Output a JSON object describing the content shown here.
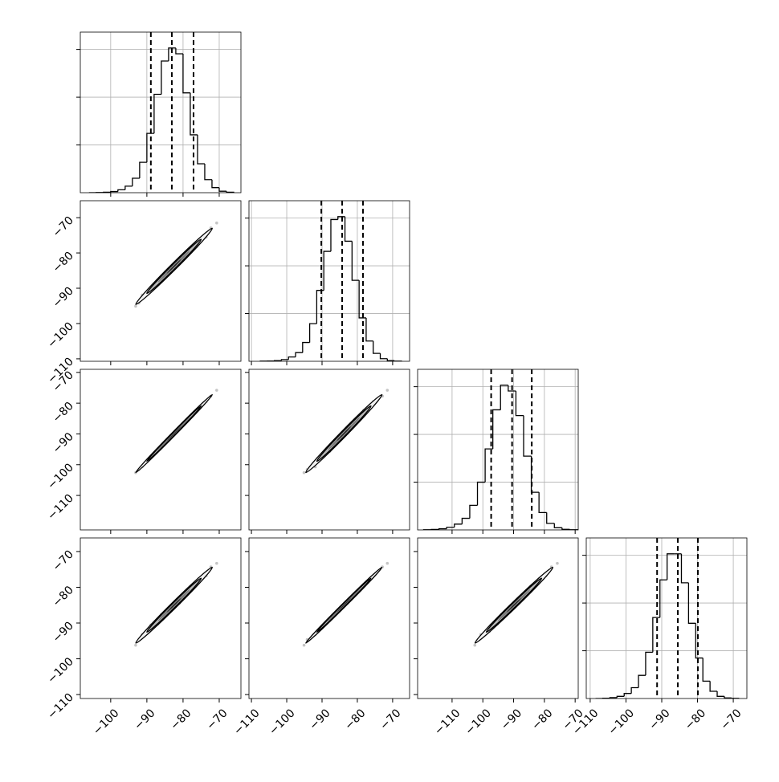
{
  "chart_data": {
    "type": "corner",
    "hist_ylim": [
      0,
      1110
    ],
    "hist_yticks": [
      330,
      660,
      990
    ],
    "hist_grid": true,
    "hist_color": "#000000",
    "point_color": "#555555",
    "contour_color": "#000000",
    "parameters": [
      {
        "xlim": [
          -108.4,
          -64
        ],
        "xticks": [
          {
            "value": -100,
            "label": "−100"
          },
          {
            "value": -90,
            "label": "−90"
          },
          {
            "value": -80,
            "label": "−80"
          },
          {
            "value": -70,
            "label": "−70"
          }
        ],
        "bins": [
          -106,
          -104,
          -102,
          -100,
          -98,
          -96,
          -94,
          -92,
          -90,
          -88,
          -86,
          -84,
          -82,
          -80,
          -78,
          -76,
          -74,
          -72,
          -70,
          -68,
          -66
        ],
        "counts": [
          0,
          1,
          3,
          8,
          20,
          45,
          100,
          210,
          410,
          680,
          910,
          1000,
          960,
          690,
          400,
          200,
          90,
          35,
          10,
          3
        ],
        "quantiles": [
          -88.9,
          -83.1,
          -77.1
        ],
        "samples": [
          -93.1,
          -91.3,
          -89.3,
          -88.9,
          -87.0,
          -87.2,
          -85.7,
          -86.0,
          -84.9,
          -84.9,
          -83.7,
          -83.7,
          -82.6,
          -83.1,
          -82.3,
          -82.4,
          -81.0,
          -81.4,
          -80.5,
          -80.5,
          -79.4,
          -79.3,
          -78.1,
          -77.9,
          -76.2,
          -75.7,
          -73.6,
          -72.3,
          -92.2,
          -70.7
        ]
      },
      {
        "xlim": [
          -110.7,
          -65.2
        ],
        "xticks": [
          {
            "value": -110,
            "label": "−110"
          },
          {
            "value": -100,
            "label": "−100"
          },
          {
            "value": -90,
            "label": "−90"
          },
          {
            "value": -80,
            "label": "−80"
          },
          {
            "value": -70,
            "label": "−70"
          }
        ],
        "bins": [
          -107.5,
          -105.5,
          -103.5,
          -101.5,
          -99.5,
          -97.5,
          -95.5,
          -93.5,
          -91.5,
          -89.5,
          -87.5,
          -85.5,
          -83.5,
          -81.5,
          -79.5,
          -77.5,
          -75.5,
          -73.5,
          -71.5,
          -69.5,
          -67.5
        ],
        "counts": [
          1,
          2,
          5,
          12,
          30,
          60,
          130,
          260,
          490,
          760,
          980,
          1000,
          830,
          560,
          300,
          140,
          55,
          18,
          5,
          1
        ],
        "quantiles": [
          -90.2,
          -84.3,
          -78.4
        ],
        "samples": [
          -95.1,
          -91.9,
          -91.3,
          -89.6,
          -89.0,
          -87.8,
          -87.7,
          -86.5,
          -86.4,
          -85.4,
          -85.6,
          -84.6,
          -84.7,
          -83.8,
          -84.0,
          -82.8,
          -83.1,
          -82.5,
          -82.5,
          -81.3,
          -81.3,
          -79.9,
          -79.9,
          -78.6,
          -78.2,
          -76.5,
          -75.5,
          -72.9,
          -94.2,
          -71.5
        ]
      },
      {
        "xlim": [
          -121.2,
          -69
        ],
        "xticks": [
          {
            "value": -110,
            "label": "−110"
          },
          {
            "value": -100,
            "label": "−100"
          },
          {
            "value": -90,
            "label": "−90"
          },
          {
            "value": -80,
            "label": "−80"
          },
          {
            "value": -70,
            "label": "−70"
          }
        ],
        "bins": [
          -119.25,
          -116.75,
          -114.25,
          -111.75,
          -109.25,
          -106.75,
          -104.25,
          -101.75,
          -99.25,
          -96.75,
          -94.25,
          -91.75,
          -89.25,
          -86.75,
          -84.25,
          -81.75,
          -79.25,
          -76.75,
          -74.25,
          -71.75,
          -69.25
        ],
        "counts": [
          1,
          3,
          8,
          18,
          40,
          80,
          170,
          330,
          560,
          830,
          1000,
          960,
          790,
          510,
          260,
          120,
          45,
          15,
          4,
          1
        ],
        "quantiles": [
          -97.3,
          -90.5,
          -84.1
        ],
        "samples": [
          -102.6,
          -100.7,
          -97.9,
          -97.4,
          -95.3,
          -95.7,
          -93.9,
          -94.0,
          -92.6,
          -92.5,
          -91.3,
          -91.4,
          -90.0,
          -90.6,
          -89.6,
          -89.8,
          -88.5,
          -88.5,
          -87.4,
          -87.5,
          -86.1,
          -85.9,
          -84.5,
          -84.4,
          -82.3,
          -81.8,
          -79.5,
          -77.7,
          -101.6,
          -75.8
        ]
      },
      {
        "xlim": [
          -111.1,
          -66.2
        ],
        "xticks": [
          {
            "value": -110,
            "label": "−110"
          },
          {
            "value": -100,
            "label": "−100"
          },
          {
            "value": -90,
            "label": "−90"
          },
          {
            "value": -80,
            "label": "−80"
          },
          {
            "value": -70,
            "label": "−70"
          }
        ],
        "bins": [
          -108.5,
          -106.5,
          -104.5,
          -102.5,
          -100.5,
          -98.5,
          -96.5,
          -94.5,
          -92.5,
          -90.5,
          -88.5,
          -86.5,
          -84.5,
          -82.5,
          -80.5,
          -78.5,
          -76.5,
          -74.5,
          -72.5,
          -70.5,
          -68.5
        ],
        "counts": [
          0,
          2,
          6,
          15,
          35,
          75,
          160,
          320,
          560,
          820,
          1000,
          1000,
          800,
          520,
          280,
          120,
          50,
          15,
          4,
          1
        ],
        "quantiles": [
          -91.3,
          -85.5,
          -79.9
        ],
        "samples": [
          -96.2,
          -93.2,
          -92.4,
          -90.5,
          -90.3,
          -89.3,
          -89.0,
          -87.6,
          -87.6,
          -86.7,
          -86.9,
          -85.8,
          -85.7,
          -84.9,
          -85.3,
          -84.4,
          -84.4,
          -83.5,
          -83.5,
          -82.4,
          -82.6,
          -81.3,
          -81.2,
          -79.7,
          -79.2,
          -77.6,
          -76.8,
          -74.3,
          -94.6,
          -73.3
        ]
      }
    ]
  }
}
